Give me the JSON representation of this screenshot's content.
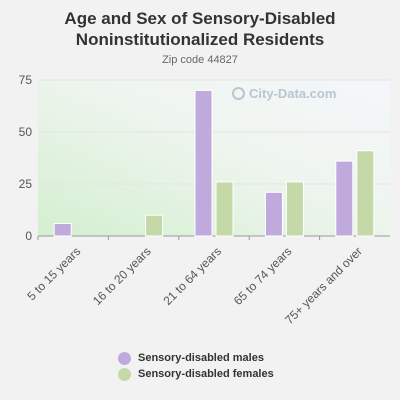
{
  "chart_data": {
    "type": "bar",
    "title": "Age and Sex of Sensory-Disabled Noninstitutionalized Residents",
    "subtitle": "Zip code 44827",
    "categories": [
      "5 to 15 years",
      "16 to 20 years",
      "21 to 64 years",
      "65 to 74 years",
      "75+ years and over"
    ],
    "series": [
      {
        "name": "Sensory-disabled males",
        "color": "#c0a9dc",
        "values": [
          6,
          0,
          70,
          21,
          36
        ]
      },
      {
        "name": "Sensory-disabled females",
        "color": "#c5d9a8",
        "values": [
          0,
          10,
          26,
          26,
          41
        ]
      }
    ],
    "ylim": [
      0,
      75
    ],
    "yticks": [
      0,
      25,
      50,
      75
    ],
    "grid": true,
    "legend_position": "bottom"
  },
  "watermark": "City-Data.com"
}
